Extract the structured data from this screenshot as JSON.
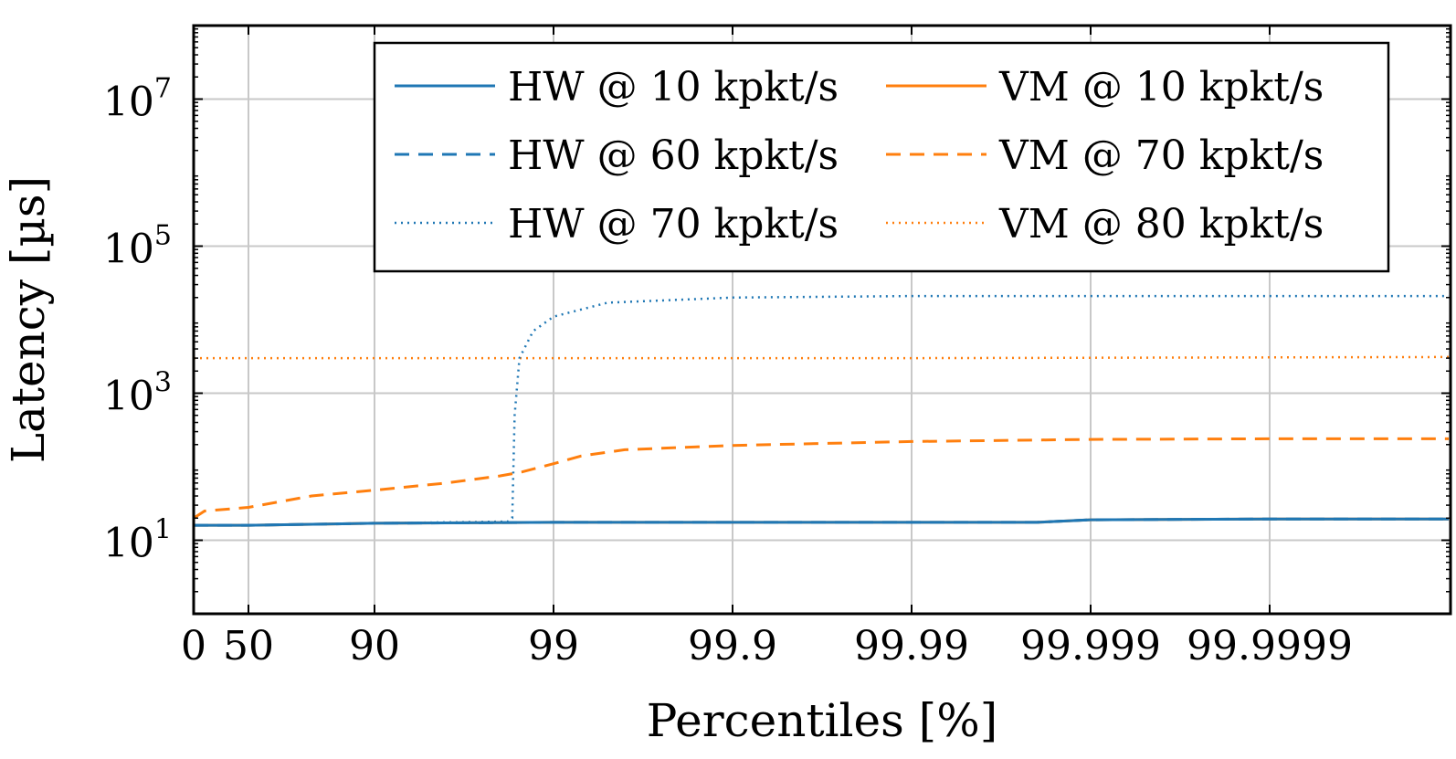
{
  "chart_data": {
    "type": "line",
    "xlabel": "Percentiles [%]",
    "ylabel": "Latency [µs]",
    "y_scale": "log",
    "x_scale": "reciprocal (100 - percentile)",
    "grid": true,
    "legend_position": "top-right",
    "ylim": [
      1,
      100000000
    ],
    "x_ticks": [
      {
        "value": 0,
        "label": "0"
      },
      {
        "value": 50,
        "label": "50"
      },
      {
        "value": 90,
        "label": "90"
      },
      {
        "value": 99,
        "label": "99"
      },
      {
        "value": 99.9,
        "label": "99.9"
      },
      {
        "value": 99.99,
        "label": "99.99"
      },
      {
        "value": 99.999,
        "label": "99.999"
      },
      {
        "value": 99.9999,
        "label": "99.9999"
      }
    ],
    "y_ticks": [
      {
        "value": 10,
        "base": "10",
        "exp": "1"
      },
      {
        "value": 1000,
        "base": "10",
        "exp": "3"
      },
      {
        "value": 100000,
        "base": "10",
        "exp": "5"
      },
      {
        "value": 10000000,
        "base": "10",
        "exp": "7"
      }
    ],
    "series": [
      {
        "name": "HW @ 10 kpkt/s",
        "color": "#1f77b4",
        "dash": "solid",
        "points": [
          [
            0,
            16
          ],
          [
            50,
            16
          ],
          [
            90,
            17
          ],
          [
            99,
            17.5
          ],
          [
            99.9,
            17.5
          ],
          [
            99.99,
            17.5
          ],
          [
            99.998,
            17.5
          ],
          [
            99.999,
            19
          ],
          [
            99.9999,
            19.5
          ],
          [
            99.99999,
            19.5
          ]
        ]
      },
      {
        "name": "HW @ 60 kpkt/s",
        "color": "#1f77b4",
        "dash": "dashed",
        "points": [
          [
            0,
            16
          ],
          [
            50,
            16
          ],
          [
            90,
            17
          ],
          [
            99,
            17.5
          ],
          [
            99.9,
            17.5
          ],
          [
            99.99,
            17.5
          ],
          [
            99.998,
            17.5
          ],
          [
            99.999,
            19
          ],
          [
            99.9999,
            19.5
          ],
          [
            99.99999,
            19.5
          ]
        ]
      },
      {
        "name": "HW @ 70 kpkt/s",
        "color": "#1f77b4",
        "dash": "dotted",
        "points": [
          [
            0,
            16
          ],
          [
            50,
            16
          ],
          [
            90,
            17
          ],
          [
            98.2,
            18
          ],
          [
            98.3,
            20
          ],
          [
            98.35,
            500
          ],
          [
            98.45,
            3000
          ],
          [
            98.7,
            7000
          ],
          [
            99,
            11000
          ],
          [
            99.5,
            17000
          ],
          [
            99.9,
            20000
          ],
          [
            99.99,
            21000
          ],
          [
            99.999,
            21000
          ],
          [
            99.99999,
            21000
          ]
        ]
      },
      {
        "name": "VM @ 10 kpkt/s",
        "color": "#ff7f0e",
        "dash": "solid",
        "points": [
          [
            0,
            16
          ],
          [
            50,
            16
          ],
          [
            90,
            17
          ],
          [
            99,
            17.5
          ],
          [
            99.9,
            17.5
          ],
          [
            99.99,
            17.5
          ],
          [
            99.998,
            17.5
          ],
          [
            99.999,
            19
          ],
          [
            99.9999,
            19.5
          ],
          [
            99.99999,
            19.5
          ]
        ]
      },
      {
        "name": "VM @ 70 kpkt/s",
        "color": "#ff7f0e",
        "dash": "dashed",
        "points": [
          [
            0,
            20
          ],
          [
            10,
            25
          ],
          [
            50,
            28
          ],
          [
            70,
            40
          ],
          [
            90,
            48
          ],
          [
            96,
            60
          ],
          [
            98,
            75
          ],
          [
            98.5,
            85
          ],
          [
            99,
            110
          ],
          [
            99.3,
            140
          ],
          [
            99.6,
            170
          ],
          [
            99.9,
            195
          ],
          [
            99.99,
            220
          ],
          [
            99.999,
            235
          ],
          [
            99.9999,
            240
          ],
          [
            99.99999,
            240
          ]
        ]
      },
      {
        "name": "VM @ 80 kpkt/s",
        "color": "#ff7f0e",
        "dash": "dotted",
        "points": [
          [
            0,
            3000
          ],
          [
            50,
            3000
          ],
          [
            99,
            3000
          ],
          [
            99.99,
            3000
          ],
          [
            99.99999,
            3100
          ]
        ]
      }
    ]
  }
}
